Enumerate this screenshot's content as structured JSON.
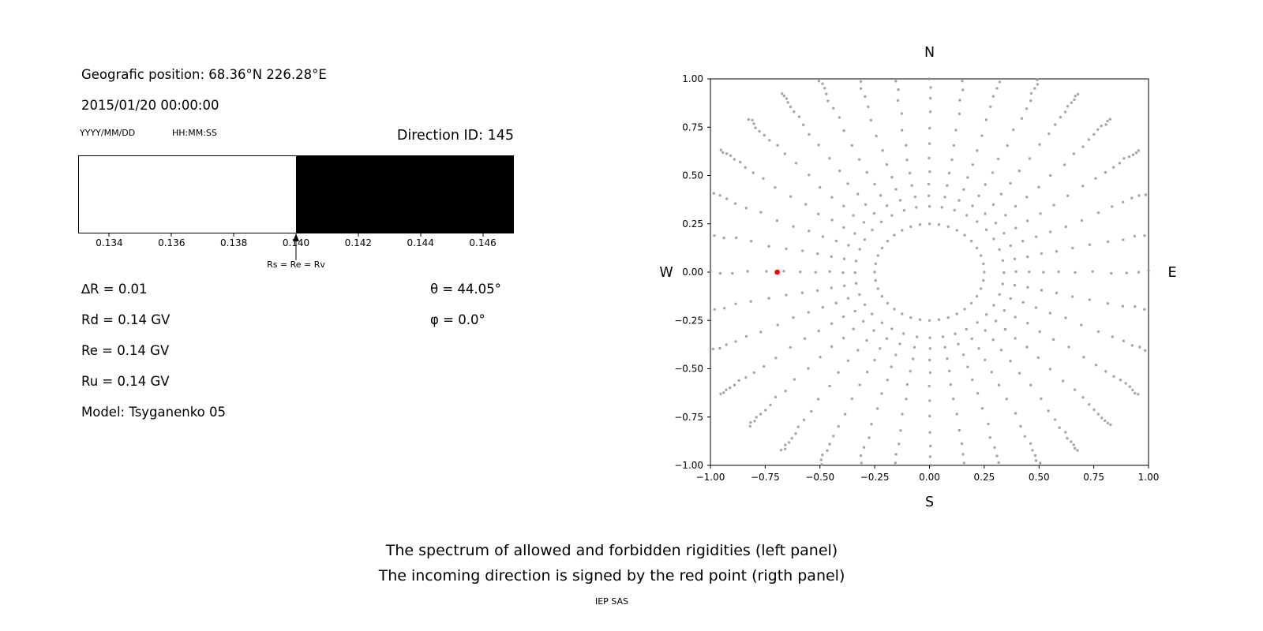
{
  "colors": {
    "background": "#ffffff",
    "text": "#000000",
    "dot": "#909090",
    "red_point": "#ff0000",
    "allowed_region": "#ffffff",
    "forbidden_region": "#000000",
    "axis": "#000000"
  },
  "left_panel": {
    "geo_position": "Geografic position: 68.36°N 226.28°E",
    "datetime": "2015/01/20 00:00:00",
    "date_format_label": "YYYY/MM/DD",
    "time_format_label": "HH:MM:SS",
    "direction_id": "Direction ID: 145",
    "parameters": [
      {
        "label": "∆R = 0.01"
      },
      {
        "label": "Rd = 0.14 GV"
      },
      {
        "label": "Re = 0.14 GV"
      },
      {
        "label": "Ru = 0.14 GV"
      },
      {
        "label": "Model: Tsyganenko 05"
      }
    ],
    "angles": [
      {
        "label": "θ = 44.05°"
      },
      {
        "label": "φ = 0.0°"
      }
    ]
  },
  "chart_data": [
    {
      "id": "rigidity_spectrum",
      "type": "area",
      "title": "",
      "xlabel": "",
      "xlim": [
        0.133,
        0.147
      ],
      "xtick_labels": [
        "0.134",
        "0.136",
        "0.138",
        "0.140",
        "0.142",
        "0.144",
        "0.146"
      ],
      "regions": [
        {
          "label": "allowed rigidities",
          "from": 0.133,
          "to": 0.14,
          "color": "#ffffff"
        },
        {
          "label": "forbidden rigidities",
          "from": 0.14,
          "to": 0.147,
          "color": "#000000"
        }
      ],
      "annotation": {
        "text": "Rs = Re = Rv",
        "x": 0.14
      }
    },
    {
      "id": "incoming_direction_map",
      "type": "scatter",
      "title": "",
      "xlim": [
        -1.0,
        1.0
      ],
      "ylim": [
        -1.0,
        1.0
      ],
      "xtick_values": [
        -1,
        -0.75,
        -0.5,
        -0.25,
        0,
        0.25,
        0.5,
        0.75,
        1
      ],
      "ytick_values": [
        1,
        0.75,
        0.5,
        0.25,
        0,
        -0.25,
        -0.5,
        -0.75,
        -1
      ],
      "xtick_labels": [
        "−1.00",
        "−0.75",
        "−0.50",
        "−0.25",
        "0.00",
        "0.25",
        "0.50",
        "0.75",
        "1.00"
      ],
      "ytick_labels": [
        "1.00",
        "0.75",
        "0.50",
        "0.25",
        "0.00",
        "−0.25",
        "−0.50",
        "−0.75",
        "−1.00"
      ],
      "compass": {
        "north": "N",
        "south": "S",
        "east": "E",
        "west": "W"
      },
      "red_point": {
        "x": -0.695,
        "y": 0.0
      },
      "dot_pattern": {
        "ring": {
          "radius": 0.25,
          "count": 36
        },
        "spokes": {
          "count": 36,
          "start_angle_deg": 0,
          "step_deg": 10,
          "radii": [
            0.34,
            0.395,
            0.455,
            0.52,
            0.59,
            0.665,
            0.745,
            0.83,
            0.9,
            0.955,
            1.0,
            1.035,
            1.065,
            1.09,
            1.11,
            1.128,
            1.143
          ],
          "curve_amp_deg": 4,
          "jitter_deg": 0.45
        }
      }
    }
  ],
  "caption": {
    "line1": "The spectrum of allowed and forbidden rigidities (left panel)",
    "line2": "The incoming direction is signed by the red point (rigth panel)",
    "credit": "IEP SAS"
  }
}
